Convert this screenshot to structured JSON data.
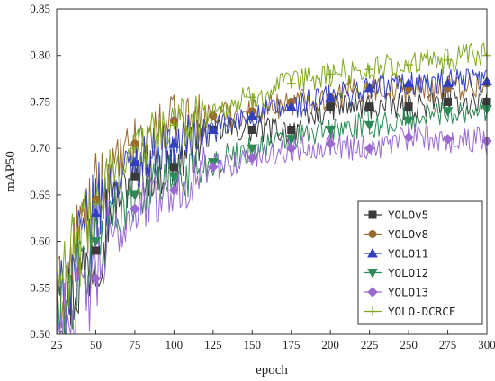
{
  "chart_data": {
    "type": "line",
    "xlabel": "epoch",
    "ylabel": "mAP50",
    "xlim": [
      25,
      300
    ],
    "ylim": [
      0.5,
      0.85
    ],
    "xticks": [
      25,
      50,
      75,
      100,
      125,
      150,
      175,
      200,
      225,
      250,
      275,
      300
    ],
    "yticks": [
      0.5,
      0.55,
      0.6,
      0.65,
      0.7,
      0.75,
      0.8,
      0.85
    ],
    "grid": false,
    "legend_position": "bottom-right",
    "marker_every": 25,
    "series": [
      {
        "name": "YOLOv5",
        "color": "#3a3a3a",
        "marker": "square",
        "anchors": [
          [
            25,
            0.52
          ],
          [
            40,
            0.56
          ],
          [
            50,
            0.59
          ],
          [
            60,
            0.64
          ],
          [
            75,
            0.67
          ],
          [
            100,
            0.68
          ],
          [
            125,
            0.72
          ],
          [
            150,
            0.72
          ],
          [
            175,
            0.72
          ],
          [
            200,
            0.745
          ],
          [
            225,
            0.745
          ],
          [
            250,
            0.745
          ],
          [
            275,
            0.75
          ],
          [
            300,
            0.75
          ]
        ]
      },
      {
        "name": "YOLOv8",
        "color": "#9a6a30",
        "marker": "circle",
        "anchors": [
          [
            25,
            0.53
          ],
          [
            40,
            0.61
          ],
          [
            50,
            0.645
          ],
          [
            60,
            0.675
          ],
          [
            75,
            0.705
          ],
          [
            100,
            0.73
          ],
          [
            125,
            0.735
          ],
          [
            150,
            0.74
          ],
          [
            175,
            0.75
          ],
          [
            200,
            0.755
          ],
          [
            225,
            0.765
          ],
          [
            250,
            0.765
          ],
          [
            275,
            0.765
          ],
          [
            300,
            0.77
          ]
        ]
      },
      {
        "name": "YOLO11",
        "color": "#3040c0",
        "marker": "triangle-up",
        "anchors": [
          [
            25,
            0.52
          ],
          [
            40,
            0.59
          ],
          [
            50,
            0.63
          ],
          [
            60,
            0.66
          ],
          [
            75,
            0.685
          ],
          [
            100,
            0.705
          ],
          [
            125,
            0.72
          ],
          [
            150,
            0.735
          ],
          [
            175,
            0.745
          ],
          [
            200,
            0.755
          ],
          [
            225,
            0.765
          ],
          [
            250,
            0.77
          ],
          [
            275,
            0.77
          ],
          [
            300,
            0.772
          ]
        ]
      },
      {
        "name": "YOLO12",
        "color": "#2e8b57",
        "marker": "triangle-down",
        "anchors": [
          [
            25,
            0.51
          ],
          [
            40,
            0.56
          ],
          [
            50,
            0.6
          ],
          [
            60,
            0.625
          ],
          [
            75,
            0.65
          ],
          [
            100,
            0.67
          ],
          [
            125,
            0.685
          ],
          [
            150,
            0.7
          ],
          [
            175,
            0.71
          ],
          [
            200,
            0.72
          ],
          [
            225,
            0.725
          ],
          [
            250,
            0.73
          ],
          [
            275,
            0.74
          ],
          [
            300,
            0.742
          ]
        ]
      },
      {
        "name": "YOLO13",
        "color": "#9a6ad0",
        "marker": "diamond",
        "anchors": [
          [
            25,
            0.5
          ],
          [
            40,
            0.53
          ],
          [
            50,
            0.56
          ],
          [
            60,
            0.6
          ],
          [
            75,
            0.635
          ],
          [
            100,
            0.655
          ],
          [
            125,
            0.68
          ],
          [
            150,
            0.69
          ],
          [
            175,
            0.7
          ],
          [
            200,
            0.705
          ],
          [
            225,
            0.7
          ],
          [
            250,
            0.712
          ],
          [
            275,
            0.71
          ],
          [
            300,
            0.708
          ]
        ]
      },
      {
        "name": "YOLO-DCRCF",
        "color": "#80a820",
        "marker": "plus",
        "anchors": [
          [
            25,
            0.54
          ],
          [
            40,
            0.6
          ],
          [
            50,
            0.64
          ],
          [
            60,
            0.67
          ],
          [
            75,
            0.7
          ],
          [
            100,
            0.725
          ],
          [
            125,
            0.74
          ],
          [
            150,
            0.755
          ],
          [
            175,
            0.77
          ],
          [
            200,
            0.78
          ],
          [
            225,
            0.785
          ],
          [
            250,
            0.79
          ],
          [
            275,
            0.795
          ],
          [
            300,
            0.8
          ]
        ]
      }
    ]
  }
}
